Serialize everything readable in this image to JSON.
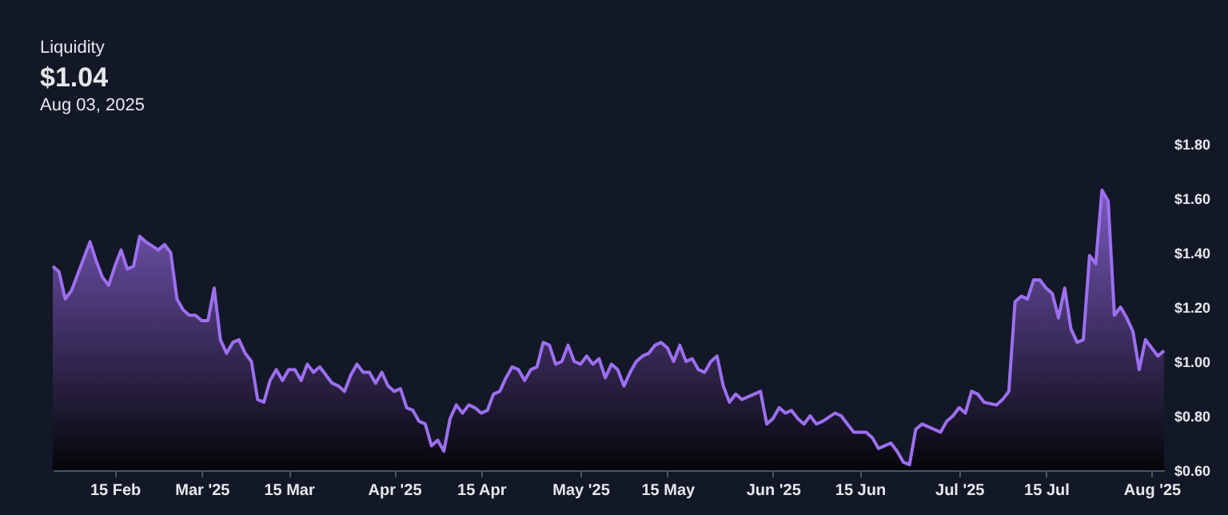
{
  "chart_data": {
    "type": "area",
    "title": "Liquidity",
    "subtitle": "$1.04",
    "annotations": [
      "Aug 03, 2025"
    ],
    "xlim": [
      "2025-02-05",
      "2025-08-03"
    ],
    "xticks": [
      {
        "value": "2025-02-15",
        "label": "15 Feb"
      },
      {
        "value": "2025-03-01",
        "label": "Mar '25"
      },
      {
        "value": "2025-03-15",
        "label": "15 Mar"
      },
      {
        "value": "2025-04-01",
        "label": "Apr '25"
      },
      {
        "value": "2025-04-15",
        "label": "15 Apr"
      },
      {
        "value": "2025-05-01",
        "label": "May '25"
      },
      {
        "value": "2025-05-15",
        "label": "15 May"
      },
      {
        "value": "2025-06-01",
        "label": "Jun '25"
      },
      {
        "value": "2025-06-15",
        "label": "15 Jun"
      },
      {
        "value": "2025-07-01",
        "label": "Jul '25"
      },
      {
        "value": "2025-07-15",
        "label": "15 Jul"
      },
      {
        "value": "2025-08-01",
        "label": "Aug '25"
      }
    ],
    "ylim": [
      0.6,
      1.8
    ],
    "yticks": [
      {
        "value": 0.6,
        "label": "$0.60"
      },
      {
        "value": 0.8,
        "label": "$0.80"
      },
      {
        "value": 1.0,
        "label": "$1.00"
      },
      {
        "value": 1.2,
        "label": "$1.20"
      },
      {
        "value": 1.4,
        "label": "$1.40"
      },
      {
        "value": 1.6,
        "label": "$1.60"
      },
      {
        "value": 1.8,
        "label": "$1.80"
      }
    ],
    "series": [
      {
        "color": "#9d6ff0",
        "x": [
          "2025-02-05",
          "2025-02-06",
          "2025-02-07",
          "2025-02-08",
          "2025-02-10",
          "2025-02-11",
          "2025-02-12",
          "2025-02-13",
          "2025-02-14",
          "2025-02-15",
          "2025-02-16",
          "2025-02-17",
          "2025-02-18",
          "2025-02-19",
          "2025-02-20",
          "2025-02-22",
          "2025-02-23",
          "2025-02-24",
          "2025-02-25",
          "2025-02-26",
          "2025-02-27",
          "2025-02-28",
          "2025-03-01",
          "2025-03-02",
          "2025-03-03",
          "2025-03-04",
          "2025-03-05",
          "2025-03-06",
          "2025-03-07",
          "2025-03-08",
          "2025-03-09",
          "2025-03-10",
          "2025-03-11",
          "2025-03-12",
          "2025-03-13",
          "2025-03-14",
          "2025-03-15",
          "2025-03-16",
          "2025-03-17",
          "2025-03-18",
          "2025-03-19",
          "2025-03-20",
          "2025-03-21",
          "2025-03-22",
          "2025-03-23",
          "2025-03-24",
          "2025-03-25",
          "2025-03-26",
          "2025-03-27",
          "2025-03-28",
          "2025-03-29",
          "2025-03-30",
          "2025-03-31",
          "2025-04-01",
          "2025-04-02",
          "2025-04-03",
          "2025-04-04",
          "2025-04-05",
          "2025-04-06",
          "2025-04-07",
          "2025-04-08",
          "2025-04-09",
          "2025-04-10",
          "2025-04-11",
          "2025-04-12",
          "2025-04-13",
          "2025-04-14",
          "2025-04-15",
          "2025-04-16",
          "2025-04-17",
          "2025-04-18",
          "2025-04-19",
          "2025-04-20",
          "2025-04-21",
          "2025-04-22",
          "2025-04-23",
          "2025-04-24",
          "2025-04-25",
          "2025-04-26",
          "2025-04-27",
          "2025-04-28",
          "2025-04-29",
          "2025-04-30",
          "2025-05-01",
          "2025-05-02",
          "2025-05-03",
          "2025-05-04",
          "2025-05-05",
          "2025-05-06",
          "2025-05-07",
          "2025-05-08",
          "2025-05-09",
          "2025-05-10",
          "2025-05-11",
          "2025-05-12",
          "2025-05-13",
          "2025-05-14",
          "2025-05-15",
          "2025-05-16",
          "2025-05-17",
          "2025-05-18",
          "2025-05-19",
          "2025-05-20",
          "2025-05-21",
          "2025-05-22",
          "2025-05-23",
          "2025-05-24",
          "2025-05-25",
          "2025-05-26",
          "2025-05-27",
          "2025-05-28",
          "2025-05-30",
          "2025-05-31",
          "2025-06-01",
          "2025-06-02",
          "2025-06-03",
          "2025-06-04",
          "2025-06-05",
          "2025-06-06",
          "2025-06-07",
          "2025-06-08",
          "2025-06-09",
          "2025-06-11",
          "2025-06-12",
          "2025-06-13",
          "2025-06-14",
          "2025-06-16",
          "2025-06-17",
          "2025-06-18",
          "2025-06-20",
          "2025-06-21",
          "2025-06-22",
          "2025-06-23",
          "2025-06-24",
          "2025-06-25",
          "2025-06-26",
          "2025-06-28",
          "2025-06-29",
          "2025-06-30",
          "2025-07-01",
          "2025-07-02",
          "2025-07-03",
          "2025-07-04",
          "2025-07-05",
          "2025-07-07",
          "2025-07-08",
          "2025-07-09",
          "2025-07-10",
          "2025-07-11",
          "2025-07-12",
          "2025-07-13",
          "2025-07-14",
          "2025-07-15",
          "2025-07-16",
          "2025-07-17",
          "2025-07-18",
          "2025-07-19",
          "2025-07-20",
          "2025-07-21",
          "2025-07-22",
          "2025-07-23",
          "2025-07-24",
          "2025-07-25",
          "2025-07-26",
          "2025-07-27",
          "2025-07-28",
          "2025-07-29",
          "2025-07-30",
          "2025-07-31",
          "2025-08-01",
          "2025-08-02",
          "2025-08-03"
        ],
        "values": [
          1.35,
          1.33,
          1.23,
          1.26,
          1.38,
          1.44,
          1.37,
          1.31,
          1.28,
          1.35,
          1.41,
          1.34,
          1.35,
          1.46,
          1.44,
          1.41,
          1.43,
          1.4,
          1.23,
          1.19,
          1.17,
          1.17,
          1.15,
          1.15,
          1.27,
          1.08,
          1.03,
          1.07,
          1.08,
          1.03,
          1.0,
          0.86,
          0.85,
          0.93,
          0.97,
          0.93,
          0.97,
          0.97,
          0.93,
          0.99,
          0.96,
          0.98,
          0.95,
          0.92,
          0.91,
          0.89,
          0.95,
          0.99,
          0.96,
          0.96,
          0.92,
          0.96,
          0.91,
          0.89,
          0.9,
          0.83,
          0.82,
          0.78,
          0.77,
          0.69,
          0.71,
          0.67,
          0.79,
          0.84,
          0.81,
          0.84,
          0.83,
          0.81,
          0.82,
          0.88,
          0.89,
          0.94,
          0.98,
          0.97,
          0.93,
          0.97,
          0.98,
          1.07,
          1.06,
          0.99,
          1.0,
          1.06,
          1.0,
          0.99,
          1.02,
          0.99,
          1.01,
          0.94,
          0.99,
          0.97,
          0.91,
          0.96,
          1.0,
          1.02,
          1.03,
          1.06,
          1.07,
          1.05,
          1.0,
          1.06,
          1.0,
          1.01,
          0.97,
          0.96,
          1.0,
          1.02,
          0.91,
          0.85,
          0.88,
          0.86,
          0.87,
          0.89,
          0.77,
          0.79,
          0.83,
          0.81,
          0.82,
          0.79,
          0.77,
          0.8,
          0.77,
          0.78,
          0.81,
          0.8,
          0.77,
          0.74,
          0.74,
          0.72,
          0.68,
          0.7,
          0.67,
          0.63,
          0.62,
          0.75,
          0.77,
          0.76,
          0.74,
          0.78,
          0.8,
          0.83,
          0.81,
          0.89,
          0.88,
          0.85,
          0.84,
          0.86,
          0.89,
          1.22,
          1.24,
          1.23,
          1.3,
          1.3,
          1.27,
          1.25,
          1.16,
          1.27,
          1.12,
          1.07,
          1.08,
          1.39,
          1.36,
          1.63,
          1.59,
          1.17,
          1.2,
          1.16,
          1.11,
          0.97,
          1.08,
          1.05,
          1.02,
          1.04
        ]
      }
    ]
  }
}
